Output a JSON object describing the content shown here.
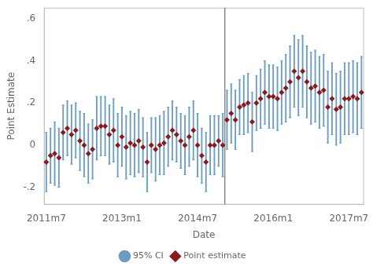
{
  "chart_data": {
    "type": "scatter",
    "xlabel": "Date",
    "ylabel": "Point Estimate",
    "categories": [
      "2011m7",
      null,
      null,
      null,
      null,
      null,
      null,
      null,
      null,
      null,
      null,
      null,
      null,
      null,
      null,
      null,
      null,
      null,
      "2013m1",
      null,
      null,
      null,
      null,
      null,
      null,
      null,
      null,
      null,
      null,
      null,
      null,
      null,
      null,
      null,
      null,
      null,
      "2014m7",
      null,
      null,
      null,
      null,
      null,
      null,
      null,
      null,
      null,
      null,
      null,
      null,
      null,
      null,
      null,
      null,
      null,
      "2016m1",
      null,
      null,
      null,
      null,
      null,
      null,
      null,
      null,
      null,
      null,
      null,
      null,
      null,
      null,
      null,
      null,
      null,
      "2017m7",
      null,
      null,
      null
    ],
    "series": [
      {
        "name": "Point estimate",
        "color": "#8B1A1A",
        "marker": "diamond",
        "values": [
          -0.08,
          -0.05,
          -0.04,
          -0.06,
          0.06,
          0.08,
          0.05,
          0.07,
          0.02,
          0.0,
          -0.04,
          -0.02,
          0.08,
          0.09,
          0.09,
          0.05,
          0.07,
          0.0,
          0.04,
          -0.01,
          0.01,
          0.0,
          0.02,
          -0.01,
          -0.08,
          0.0,
          -0.02,
          0.0,
          0.01,
          0.04,
          0.07,
          0.05,
          0.02,
          0.0,
          0.04,
          0.07,
          0.0,
          -0.05,
          -0.08,
          0.0,
          0.0,
          0.02,
          0.0,
          0.12,
          0.15,
          0.12,
          0.18,
          0.19,
          0.2,
          0.11,
          0.2,
          0.22,
          0.25,
          0.23,
          0.23,
          0.22,
          0.25,
          0.27,
          0.3,
          0.35,
          0.32,
          0.35,
          0.3,
          0.27,
          0.28,
          0.25,
          0.26,
          0.18,
          0.22,
          0.17,
          0.18,
          0.22,
          0.22,
          0.23,
          0.22,
          0.25
        ],
        "error_bars": {
          "name": "95% CI",
          "color": "#6B9DC4",
          "lower": [
            -0.22,
            -0.18,
            -0.19,
            -0.2,
            -0.07,
            -0.05,
            -0.09,
            -0.06,
            -0.12,
            -0.15,
            -0.18,
            -0.16,
            -0.07,
            -0.05,
            -0.05,
            -0.09,
            -0.08,
            -0.15,
            -0.1,
            -0.16,
            -0.14,
            -0.15,
            -0.13,
            -0.15,
            -0.22,
            -0.13,
            -0.17,
            -0.14,
            -0.14,
            -0.1,
            -0.07,
            -0.08,
            -0.11,
            -0.14,
            -0.1,
            -0.07,
            -0.15,
            -0.18,
            -0.22,
            -0.14,
            -0.14,
            -0.1,
            -0.15,
            -0.02,
            0.01,
            -0.02,
            0.05,
            0.05,
            0.06,
            -0.03,
            0.07,
            0.08,
            0.1,
            0.08,
            0.08,
            0.07,
            0.1,
            0.11,
            0.13,
            0.18,
            0.14,
            0.18,
            0.13,
            0.1,
            0.11,
            0.08,
            0.09,
            0.01,
            0.05,
            0.0,
            0.01,
            0.05,
            0.05,
            0.06,
            0.05,
            0.08
          ],
          "upper": [
            0.06,
            0.08,
            0.11,
            0.08,
            0.19,
            0.21,
            0.19,
            0.2,
            0.16,
            0.15,
            0.1,
            0.12,
            0.23,
            0.23,
            0.23,
            0.19,
            0.22,
            0.15,
            0.18,
            0.14,
            0.16,
            0.15,
            0.17,
            0.13,
            0.06,
            0.13,
            0.13,
            0.14,
            0.16,
            0.18,
            0.21,
            0.18,
            0.15,
            0.14,
            0.18,
            0.21,
            0.15,
            0.08,
            0.06,
            0.14,
            0.14,
            0.14,
            0.15,
            0.26,
            0.29,
            0.26,
            0.31,
            0.33,
            0.34,
            0.25,
            0.33,
            0.36,
            0.4,
            0.38,
            0.38,
            0.37,
            0.4,
            0.43,
            0.47,
            0.52,
            0.5,
            0.52,
            0.47,
            0.44,
            0.45,
            0.42,
            0.43,
            0.35,
            0.39,
            0.34,
            0.35,
            0.39,
            0.39,
            0.4,
            0.39,
            0.42
          ]
        }
      }
    ],
    "vline": {
      "value": 42.5,
      "color": "#555555"
    },
    "ylim": [
      -0.28,
      0.65
    ],
    "yticks": [
      {
        "value": -0.2,
        "label": "-.2"
      },
      0,
      {
        "value": 0.2,
        "label": ".2"
      },
      {
        "value": 0.4,
        "label": ".4"
      },
      {
        "value": 0.6,
        "label": ".6"
      }
    ],
    "grid": false,
    "legend": "bottom"
  }
}
